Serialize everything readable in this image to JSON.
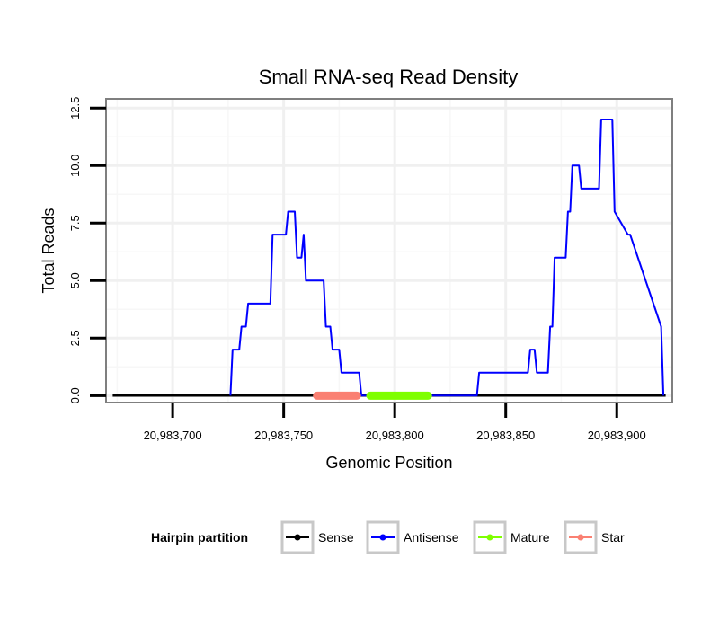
{
  "chart_data": {
    "type": "line",
    "title": "Small RNA-seq Read Density",
    "xlabel": "Genomic Position",
    "ylabel": "Total Reads",
    "xlim": [
      20983670,
      20983925
    ],
    "ylim": [
      -0.3,
      12.9
    ],
    "x_ticks": [
      20983700,
      20983750,
      20983800,
      20983850,
      20983900
    ],
    "x_tick_labels": [
      "20,983,700",
      "20,983,750",
      "20,983,800",
      "20,983,850",
      "20,983,900"
    ],
    "y_ticks": [
      0,
      2.5,
      5,
      7.5,
      10,
      12.5
    ],
    "y_tick_labels": [
      "0.0",
      "2.5",
      "5.0",
      "7.5",
      "10.0",
      "12.5"
    ],
    "grid": true,
    "legend": {
      "title": "Hairpin partition",
      "placement": "bottom",
      "entries": [
        "Sense",
        "Antisense",
        "Mature",
        "Star"
      ]
    },
    "series": [
      {
        "name": "Sense",
        "color": "#000000",
        "x": [
          20983673,
          20983922
        ],
        "y": [
          0,
          0
        ]
      },
      {
        "name": "Antisense",
        "color": "#0000ff",
        "x": [
          20983726,
          20983727,
          20983730,
          20983731,
          20983733,
          20983734,
          20983737,
          20983738,
          20983744,
          20983745,
          20983751,
          20983752,
          20983755,
          20983756,
          20983758,
          20983759,
          20983760,
          20983761,
          20983768,
          20983769,
          20983771,
          20983772,
          20983775,
          20983776,
          20983784,
          20983785,
          20983837,
          20983838,
          20983860,
          20983861,
          20983863,
          20983864,
          20983869,
          20983870,
          20983871,
          20983872,
          20983877,
          20983878,
          20983879,
          20983880,
          20983883,
          20983884,
          20983892,
          20983893,
          20983897,
          20983898,
          20983899,
          20983905,
          20983906,
          20983920,
          20983921
        ],
        "y": [
          0,
          2,
          2,
          3,
          3,
          4,
          4,
          4,
          4,
          7,
          7,
          8,
          8,
          6,
          6,
          7,
          5,
          5,
          5,
          3,
          3,
          2,
          2,
          1,
          1,
          0,
          0,
          1,
          1,
          2,
          2,
          1,
          1,
          3,
          3,
          6,
          6,
          8,
          8,
          10,
          10,
          9,
          9,
          12,
          12,
          12,
          8,
          7,
          7,
          3,
          0
        ]
      },
      {
        "name": "Mature",
        "color": "#7fff00",
        "x": [
          20983789,
          20983815
        ],
        "y": [
          0,
          0
        ]
      },
      {
        "name": "Star",
        "color": "#fa8072",
        "x": [
          20983765,
          20983783
        ],
        "y": [
          0,
          0
        ]
      }
    ]
  }
}
